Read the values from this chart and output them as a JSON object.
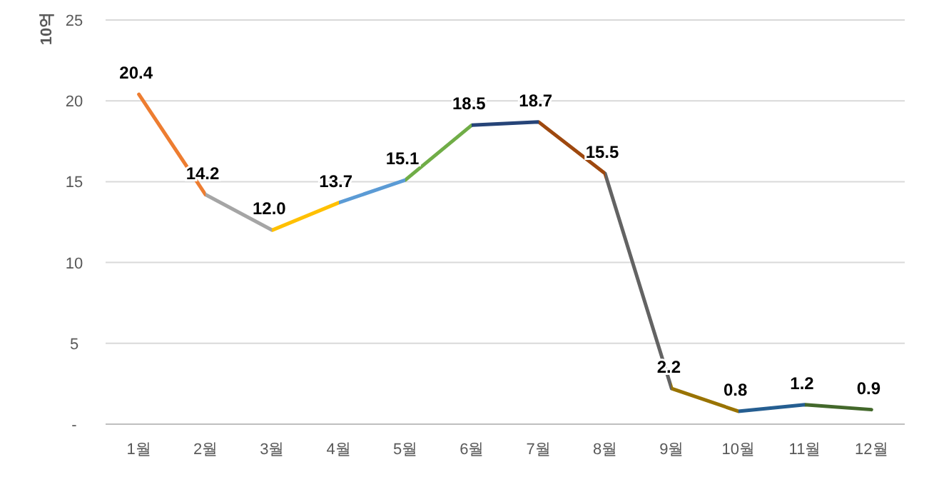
{
  "chart_data": {
    "type": "line",
    "ylabel": "10억",
    "categories": [
      "1월",
      "2월",
      "3월",
      "4월",
      "5월",
      "6월",
      "7월",
      "8월",
      "9월",
      "10월",
      "11월",
      "12월"
    ],
    "series": [
      {
        "values": [
          20.4,
          14.2,
          12.0,
          13.7,
          15.1,
          18.5,
          18.7,
          15.5,
          2.2,
          0.8,
          1.2,
          0.9
        ],
        "colors": [
          "#ed7d31",
          "#ed7d31",
          "#a5a5a5",
          "#ffc000",
          "#5b9bd5",
          "#70ad47",
          "#264478",
          "#9e480e",
          "#636363",
          "#997300",
          "#255e91",
          "#43682b"
        ]
      }
    ],
    "ylim": [
      0,
      25
    ],
    "yticks": [
      {
        "value": 0,
        "label": "-"
      },
      5,
      10,
      15,
      20,
      25
    ],
    "value_labels": [
      "20.4",
      "14.2",
      "12.0",
      "13.7",
      "15.1",
      "18.5",
      "18.7",
      "15.5",
      "2.2",
      "0.8",
      "1.2",
      "0.9"
    ],
    "grid": "y",
    "marker": "none"
  }
}
